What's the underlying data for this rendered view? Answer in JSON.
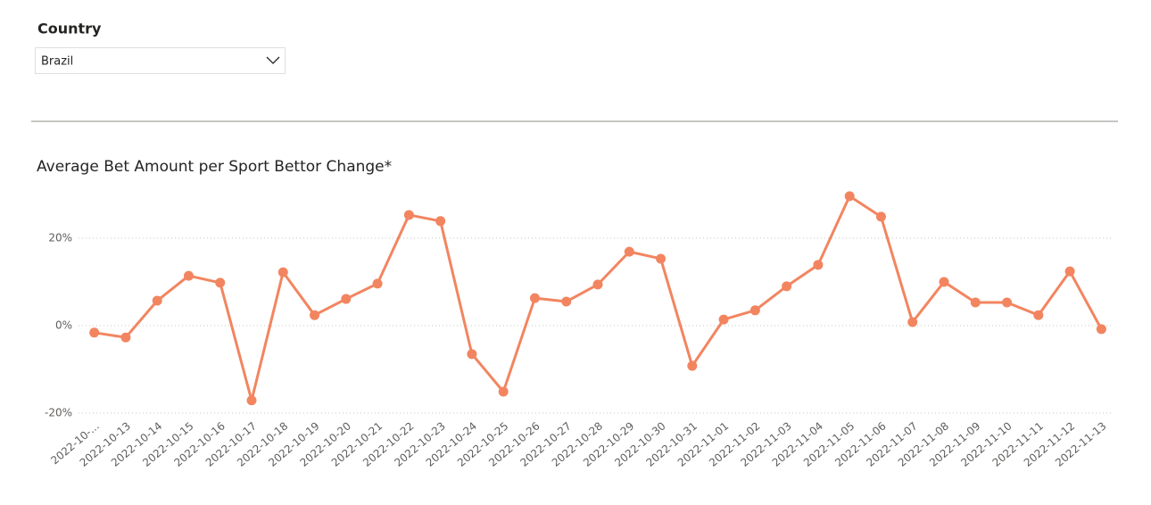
{
  "slicer": {
    "title": "Country",
    "selected": "Brazil"
  },
  "chart_data": {
    "type": "line",
    "title": "Average Bet Amount per Sport Bettor Change*",
    "categories": [
      "2022-10-...",
      "2022-10-13",
      "2022-10-14",
      "2022-10-15",
      "2022-10-16",
      "2022-10-17",
      "2022-10-18",
      "2022-10-19",
      "2022-10-20",
      "2022-10-21",
      "2022-10-22",
      "2022-10-23",
      "2022-10-24",
      "2022-10-25",
      "2022-10-26",
      "2022-10-27",
      "2022-10-28",
      "2022-10-29",
      "2022-10-30",
      "2022-10-31",
      "2022-11-01",
      "2022-11-02",
      "2022-11-03",
      "2022-11-04",
      "2022-11-05",
      "2022-11-06",
      "2022-11-07",
      "2022-11-08",
      "2022-11-09",
      "2022-11-10",
      "2022-11-11",
      "2022-11-12",
      "2022-11-13"
    ],
    "values": [
      -1.6,
      -2.7,
      5.7,
      11.4,
      9.8,
      -17.1,
      12.2,
      2.4,
      6.1,
      9.6,
      25.3,
      23.9,
      -6.5,
      -15.1,
      6.3,
      5.5,
      9.4,
      16.9,
      15.3,
      -9.2,
      1.4,
      3.5,
      9.0,
      13.9,
      29.6,
      24.9,
      0.8,
      10.0,
      5.3,
      5.3,
      2.4,
      12.4,
      -0.8
    ],
    "color": "#f28560",
    "ylim": [
      -20,
      31
    ],
    "yticks": [
      {
        "value": -20,
        "label": "-20%"
      },
      {
        "value": 0,
        "label": "0%"
      },
      {
        "value": 20,
        "label": "20%"
      }
    ],
    "grid": true
  }
}
